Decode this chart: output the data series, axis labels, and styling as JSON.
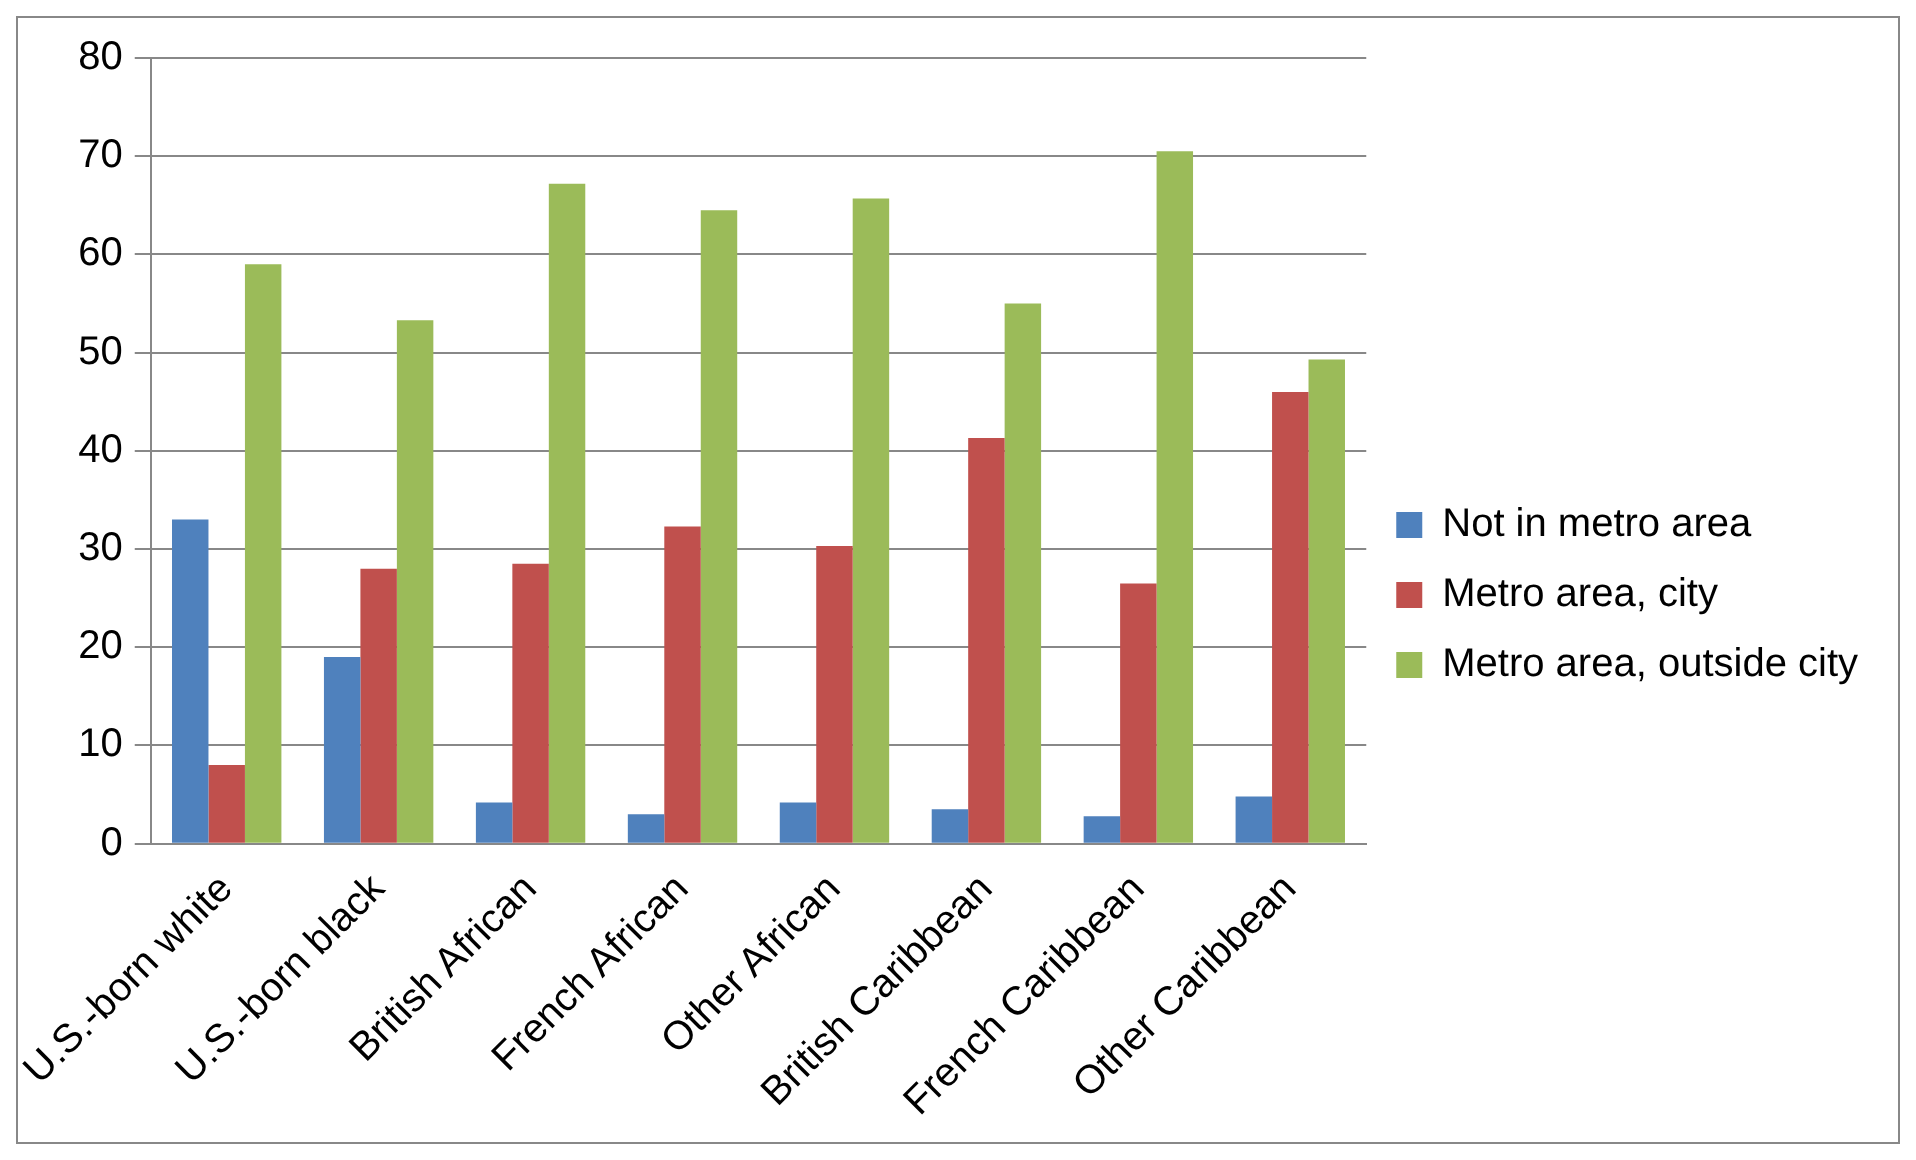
{
  "chart_data": {
    "type": "bar",
    "categories": [
      "U.S.-born white",
      "U.S.-born black",
      "British African",
      "French African",
      "Other African",
      "British Caribbean",
      "French Caribbean",
      "Other Caribbean"
    ],
    "series": [
      {
        "name": "Not in metro area",
        "color": "#4f81bd",
        "values": [
          33,
          19,
          4.2,
          3,
          4.2,
          3.5,
          2.8,
          4.8
        ]
      },
      {
        "name": "Metro area, city",
        "color": "#c0504d",
        "values": [
          8,
          28,
          28.5,
          32.3,
          30.3,
          41.3,
          26.5,
          46
        ]
      },
      {
        "name": "Metro area, outside city",
        "color": "#9bbb59",
        "values": [
          59,
          53.3,
          67.2,
          64.5,
          65.7,
          55,
          70.5,
          49.3
        ]
      }
    ],
    "ylim": [
      0,
      80
    ],
    "yticks": [
      0,
      10,
      20,
      30,
      40,
      50,
      60,
      70,
      80
    ],
    "grid": "y",
    "legend": "right"
  }
}
